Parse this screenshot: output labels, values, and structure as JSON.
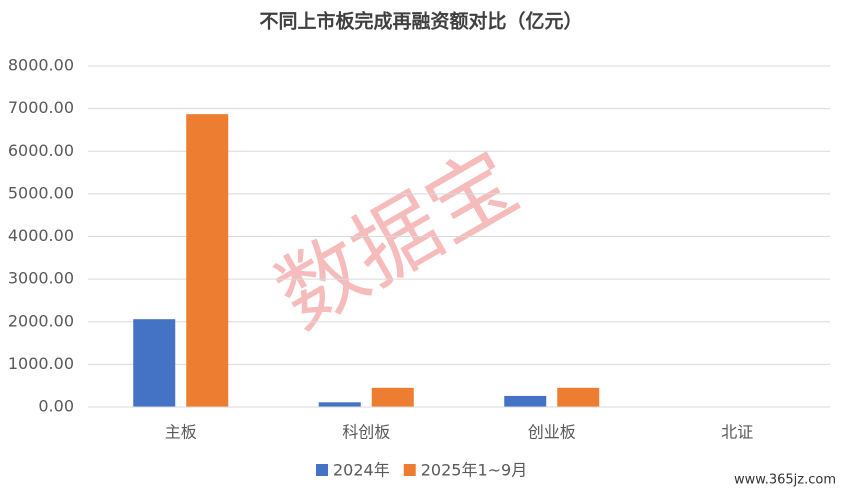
{
  "chart_data": {
    "type": "bar",
    "title": "不同上市板完成再融资额对比（亿元）",
    "categories": [
      "主板",
      "科创板",
      "创业板",
      "北证"
    ],
    "series": [
      {
        "name": "2024年",
        "color": "#4472c4",
        "values": [
          2060,
          110,
          260,
          5
        ]
      },
      {
        "name": "2025年1~9月",
        "color": "#ed7d31",
        "values": [
          6870,
          450,
          450,
          5
        ]
      }
    ],
    "ylim": [
      0,
      8000
    ],
    "yticks": [
      {
        "value": 0,
        "label": "0.00"
      },
      {
        "value": 1000,
        "label": "1000.00"
      },
      {
        "value": 2000,
        "label": "2000.00"
      },
      {
        "value": 3000,
        "label": "3000.00"
      },
      {
        "value": 4000,
        "label": "4000.00"
      },
      {
        "value": 5000,
        "label": "5000.00"
      },
      {
        "value": 6000,
        "label": "6000.00"
      },
      {
        "value": 7000,
        "label": "7000.00"
      },
      {
        "value": 8000,
        "label": "8000.00"
      }
    ],
    "grid": true,
    "legend": "bottom",
    "watermark": "数据宝",
    "footer": "www.365jz.com"
  }
}
